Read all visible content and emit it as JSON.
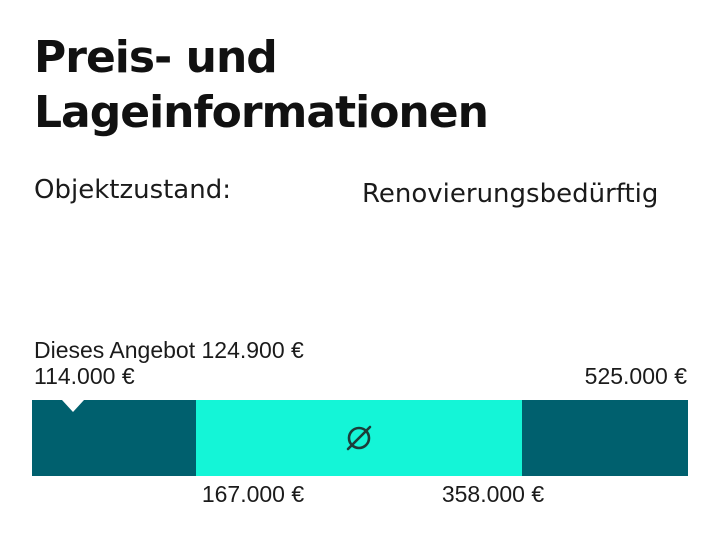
{
  "section": {
    "title": "Preis- und Lageinformationen"
  },
  "attributes": [
    {
      "label": "Objektzustand:",
      "value": "Renovierungsbedürftig"
    }
  ],
  "price_range": {
    "offer_label": "Dieses Angebot 124.900 €",
    "offer_value": 124900,
    "min_label": "114.000 €",
    "min_value": 114000,
    "max_label": "525.000 €",
    "max_value": 525000,
    "q1_label": "167.000 €",
    "q1_value": 167000,
    "q3_label": "358.000 €",
    "q3_value": 358000,
    "average_icon": "average-diameter-icon",
    "colors": {
      "outer_band": "#00606e",
      "middle_band": "#14f5d7",
      "marker": "#ffffff"
    }
  }
}
